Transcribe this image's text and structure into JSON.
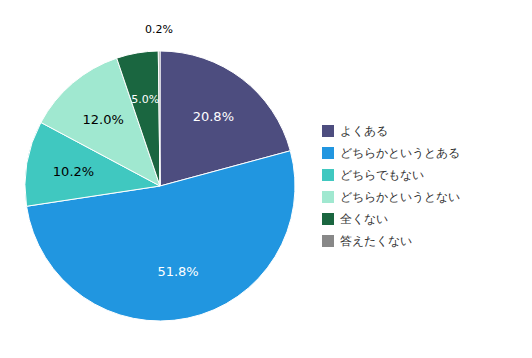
{
  "chart_data": {
    "type": "pie",
    "categories": [
      "よくある",
      "どちらかというとある",
      "どちらでもない",
      "どちらかというとない",
      "全くない",
      "答えたくない"
    ],
    "values": [
      20.8,
      51.8,
      10.2,
      12.0,
      5.0,
      0.2
    ],
    "value_labels": [
      "20.8%",
      "51.8%",
      "10.2%",
      "12.0%",
      "5.0%",
      "0.2%"
    ],
    "colors": [
      "#4d4d7f",
      "#2196e0",
      "#40c8c0",
      "#a0e8d0",
      "#1a6640",
      "#888888"
    ],
    "data_labels": true,
    "legend": "right"
  }
}
